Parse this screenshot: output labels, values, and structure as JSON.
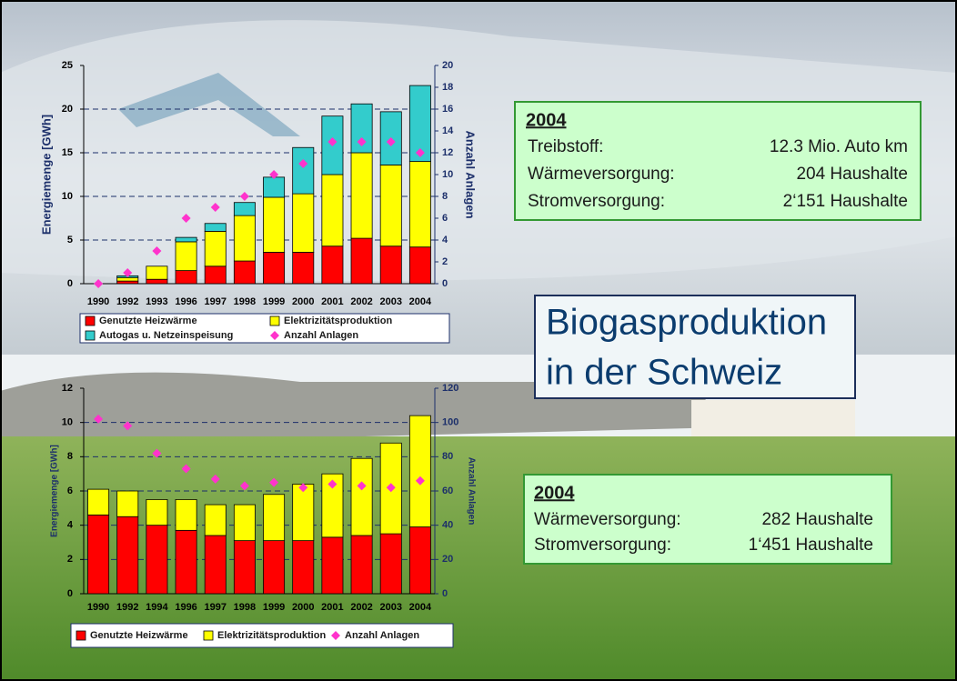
{
  "title_lines": [
    "Biogasproduktion",
    "in der Schweiz"
  ],
  "info_boxes": [
    {
      "heading": "2004",
      "rows": [
        [
          "Treibstoff:",
          "12.3 Mio. Auto km"
        ],
        [
          "Wärmeversorgung:",
          "204 Haushalte"
        ],
        [
          "Stromversorgung:",
          "2‘151 Haushalte"
        ]
      ]
    },
    {
      "heading": "2004",
      "rows": [
        [
          "Wärmeversorgung:",
          "282 Haushalte"
        ],
        [
          "Stromversorgung:",
          "1‘451 Haushalte"
        ]
      ]
    }
  ],
  "chart_data": [
    {
      "type": "bar",
      "stacked": true,
      "grid": true,
      "categories": [
        "1990",
        "1992",
        "1993",
        "1996",
        "1997",
        "1998",
        "1999",
        "2000",
        "2001",
        "2002",
        "2003",
        "2004"
      ],
      "y_label": "Energiemenge [GWh]",
      "y2_label": "Anzahl Anlagen",
      "ylim": [
        0,
        25
      ],
      "yticks": [
        0,
        5,
        10,
        15,
        20,
        25
      ],
      "y2lim": [
        0,
        20
      ],
      "y2ticks": [
        0,
        2,
        4,
        6,
        8,
        10,
        12,
        14,
        16,
        18,
        20
      ],
      "series": [
        {
          "name": "Genutzte Heizwärme",
          "color": "#ff0000",
          "values": [
            0,
            0.3,
            0.5,
            1.5,
            2.0,
            2.6,
            3.6,
            3.6,
            4.3,
            5.2,
            4.3,
            4.2
          ]
        },
        {
          "name": "Elektrizitätsproduktion",
          "color": "#ffff00",
          "values": [
            0,
            0.4,
            1.5,
            3.3,
            4.0,
            5.2,
            6.3,
            6.7,
            8.2,
            9.8,
            9.3,
            9.8
          ]
        },
        {
          "name": "Autogas u. Netzeinspeisung",
          "color": "#33cccc",
          "values": [
            0,
            0.2,
            0,
            0.5,
            0.9,
            1.5,
            2.3,
            5.3,
            6.7,
            5.6,
            6.1,
            8.7
          ]
        },
        {
          "name": "Anzahl Anlagen",
          "color": "#ff33cc",
          "axis": "y2",
          "marker": "diamond",
          "values": [
            0,
            1,
            3,
            6,
            7,
            8,
            10,
            11,
            13,
            13,
            13,
            12
          ]
        }
      ]
    },
    {
      "type": "bar",
      "stacked": true,
      "grid": true,
      "categories": [
        "1990",
        "1992",
        "1994",
        "1996",
        "1997",
        "1998",
        "1999",
        "2000",
        "2001",
        "2002",
        "2003",
        "2004"
      ],
      "y_label": "Energiemenge [GWh]",
      "y2_label": "Anzahl Anlagen",
      "ylim": [
        0,
        12
      ],
      "yticks": [
        0,
        2,
        4,
        6,
        8,
        10,
        12
      ],
      "y2lim": [
        0,
        120
      ],
      "y2ticks": [
        0,
        20,
        40,
        60,
        80,
        100,
        120
      ],
      "series": [
        {
          "name": "Genutzte Heizwärme",
          "color": "#ff0000",
          "values": [
            4.6,
            4.5,
            4.0,
            3.7,
            3.4,
            3.1,
            3.1,
            3.1,
            3.3,
            3.4,
            3.5,
            3.9
          ]
        },
        {
          "name": "Elektrizitätsproduktion",
          "color": "#ffff00",
          "values": [
            1.5,
            1.5,
            1.5,
            1.8,
            1.8,
            2.1,
            2.7,
            3.3,
            3.7,
            4.5,
            5.3,
            6.5
          ]
        },
        {
          "name": "Anzahl Anlagen",
          "color": "#ff33cc",
          "axis": "y2",
          "marker": "diamond",
          "values": [
            102,
            98,
            82,
            73,
            67,
            63,
            65,
            62,
            64,
            63,
            62,
            66
          ]
        }
      ]
    }
  ]
}
